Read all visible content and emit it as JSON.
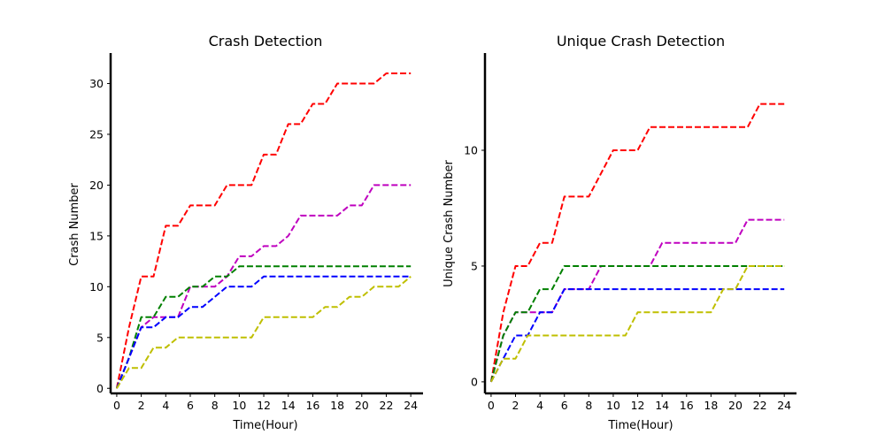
{
  "chart_data": [
    {
      "type": "line",
      "title": "Crash Detection",
      "xlabel": "Time(Hour)",
      "ylabel": "Crash Number",
      "xlim": [
        -0.5,
        25
      ],
      "ylim": [
        -0.5,
        33
      ],
      "xticks": [
        0,
        2,
        4,
        6,
        8,
        10,
        12,
        14,
        16,
        18,
        20,
        22,
        24
      ],
      "yticks": [
        0,
        5,
        10,
        15,
        20,
        25,
        30
      ],
      "line_style": "dashed",
      "x": [
        0,
        1,
        2,
        3,
        4,
        5,
        6,
        7,
        8,
        9,
        10,
        11,
        12,
        13,
        14,
        15,
        16,
        17,
        18,
        19,
        20,
        21,
        22,
        23,
        24
      ],
      "series": [
        {
          "color": "#ff0000",
          "values": [
            0,
            6,
            11,
            11,
            16,
            16,
            18,
            18,
            18,
            20,
            20,
            20,
            23,
            23,
            26,
            26,
            28,
            28,
            30,
            30,
            30,
            30,
            31,
            31,
            31
          ]
        },
        {
          "color": "#bf00bf",
          "values": [
            0,
            3,
            6,
            7,
            7,
            7,
            10,
            10,
            10,
            11,
            13,
            13,
            14,
            14,
            15,
            17,
            17,
            17,
            17,
            18,
            18,
            20,
            20,
            20,
            20
          ]
        },
        {
          "color": "#008000",
          "values": [
            0,
            3,
            7,
            7,
            9,
            9,
            10,
            10,
            11,
            11,
            12,
            12,
            12,
            12,
            12,
            12,
            12,
            12,
            12,
            12,
            12,
            12,
            12,
            12,
            12
          ]
        },
        {
          "color": "#0000ff",
          "values": [
            0,
            3,
            6,
            6,
            7,
            7,
            8,
            8,
            9,
            10,
            10,
            10,
            11,
            11,
            11,
            11,
            11,
            11,
            11,
            11,
            11,
            11,
            11,
            11,
            11
          ]
        },
        {
          "color": "#bfbf00",
          "values": [
            0,
            2,
            2,
            4,
            4,
            5,
            5,
            5,
            5,
            5,
            5,
            5,
            7,
            7,
            7,
            7,
            7,
            8,
            8,
            9,
            9,
            10,
            10,
            10,
            11
          ]
        }
      ]
    },
    {
      "type": "line",
      "title": "Unique Crash Detection",
      "xlabel": "Time(Hour)",
      "ylabel": "Unique Crash Number",
      "xlim": [
        -0.5,
        25
      ],
      "ylim": [
        -0.5,
        14.2
      ],
      "xticks": [
        0,
        2,
        4,
        6,
        8,
        10,
        12,
        14,
        16,
        18,
        20,
        22,
        24
      ],
      "yticks": [
        0,
        5,
        10
      ],
      "line_style": "dashed",
      "x": [
        0,
        1,
        2,
        3,
        4,
        5,
        6,
        7,
        8,
        9,
        10,
        11,
        12,
        13,
        14,
        15,
        16,
        17,
        18,
        19,
        20,
        21,
        22,
        23,
        24
      ],
      "series": [
        {
          "color": "#ff0000",
          "values": [
            0,
            3,
            5,
            5,
            6,
            6,
            8,
            8,
            8,
            9,
            10,
            10,
            10,
            11,
            11,
            11,
            11,
            11,
            11,
            11,
            11,
            11,
            12,
            12,
            12
          ]
        },
        {
          "color": "#bf00bf",
          "values": [
            0,
            2,
            3,
            3,
            3,
            3,
            4,
            4,
            4,
            5,
            5,
            5,
            5,
            5,
            6,
            6,
            6,
            6,
            6,
            6,
            6,
            7,
            7,
            7,
            7
          ]
        },
        {
          "color": "#008000",
          "values": [
            0,
            2,
            3,
            3,
            4,
            4,
            5,
            5,
            5,
            5,
            5,
            5,
            5,
            5,
            5,
            5,
            5,
            5,
            5,
            5,
            5,
            5,
            5,
            5,
            5
          ]
        },
        {
          "color": "#0000ff",
          "values": [
            0,
            1,
            2,
            2,
            3,
            3,
            4,
            4,
            4,
            4,
            4,
            4,
            4,
            4,
            4,
            4,
            4,
            4,
            4,
            4,
            4,
            4,
            4,
            4,
            4
          ]
        },
        {
          "color": "#bfbf00",
          "values": [
            0,
            1,
            1,
            2,
            2,
            2,
            2,
            2,
            2,
            2,
            2,
            2,
            3,
            3,
            3,
            3,
            3,
            3,
            3,
            4,
            4,
            5,
            5,
            5,
            5
          ]
        }
      ]
    }
  ]
}
